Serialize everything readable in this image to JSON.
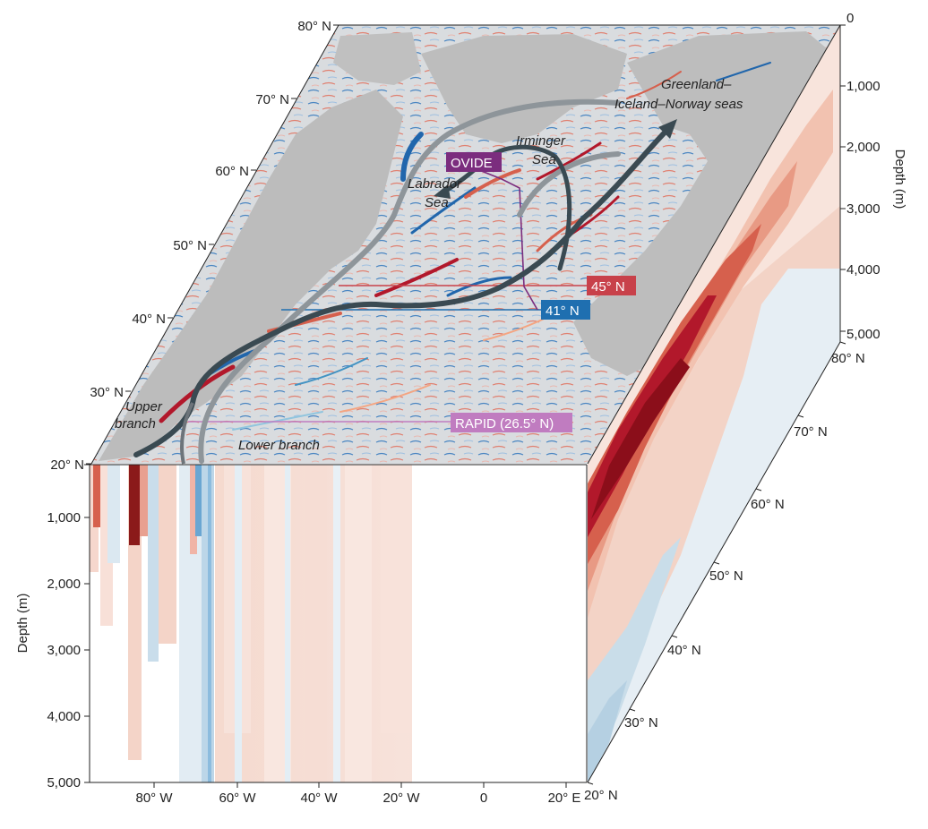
{
  "top_lat_ticks": [
    "80° N",
    "70° N",
    "60° N",
    "50° N",
    "40° N",
    "30° N",
    "20° N"
  ],
  "front_depth_ticks": [
    "1,000",
    "2,000",
    "3,000",
    "4,000",
    "5,000"
  ],
  "front_lon_ticks": [
    "80° W",
    "60° W",
    "40° W",
    "20° W",
    "0",
    "20° E"
  ],
  "front_depth_title": "Depth (m)",
  "right_depth_ticks": [
    "0",
    "1,000",
    "2,000",
    "3,000",
    "4,000",
    "5,000"
  ],
  "right_depth_title": "Depth (m)",
  "right_lat_ticks": [
    "80° N",
    "70° N",
    "60° N",
    "50° N",
    "40° N",
    "30° N",
    "20° N"
  ],
  "map_labels": {
    "gin_line1": "Greenland–",
    "gin_line2": "Iceland–Norway seas",
    "irminger_line1": "Irminger",
    "irminger_line2": "Sea",
    "labrador_line1": "Labrador",
    "labrador_line2": "Sea",
    "upper_line1": "Upper",
    "upper_line2": "branch",
    "lower_branch": "Lower branch"
  },
  "sections": {
    "ovide": "OVIDE",
    "lat45": "45° N",
    "lat41": "41° N",
    "rapid": "RAPID (26.5° N)"
  },
  "colors": {
    "ovide": "#7b2d7e",
    "lat45": "#c8414a",
    "lat41": "#1f6fb0",
    "rapid": "#c07cc0",
    "arrow_dark": "#3a4a52",
    "arrow_light": "#8e959a",
    "land": "#b9b9b9"
  }
}
